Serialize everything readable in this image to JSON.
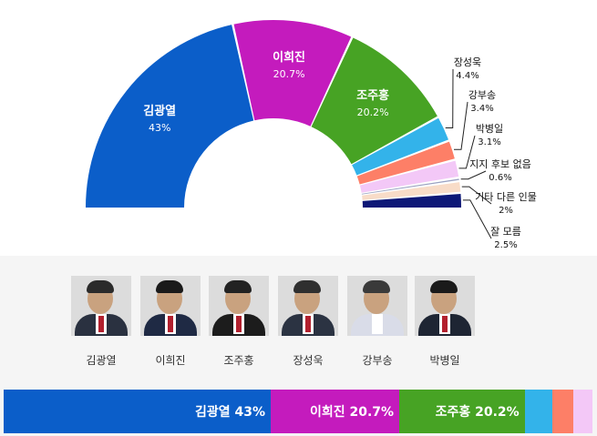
{
  "chart_data": {
    "type": "pie",
    "subtype": "half-donut",
    "slices": [
      {
        "label": "김광열",
        "value": 43,
        "display": "43%",
        "color": "#0b5ec9"
      },
      {
        "label": "이희진",
        "value": 20.7,
        "display": "20.7%",
        "color": "#c41bbd"
      },
      {
        "label": "조주홍",
        "value": 20.2,
        "display": "20.2%",
        "color": "#47a324"
      },
      {
        "label": "장성욱",
        "value": 4.4,
        "display": "4.4%",
        "color": "#33b3ea"
      },
      {
        "label": "강부송",
        "value": 3.4,
        "display": "3.4%",
        "color": "#fd7f67"
      },
      {
        "label": "박병일",
        "value": 3.1,
        "display": "3.1%",
        "color": "#f3c8f7"
      },
      {
        "label": "지지 후보 없음",
        "value": 0.6,
        "display": "0.6%",
        "color": "#9aa2c2"
      },
      {
        "label": "기타 다른 인물",
        "value": 2,
        "display": "2%",
        "color": "#f8dcc8"
      },
      {
        "label": "잘 모름",
        "value": 2.5,
        "display": "2.5%",
        "color": "#0d1877"
      }
    ]
  },
  "candidates": [
    {
      "name": "김광열"
    },
    {
      "name": "이희진"
    },
    {
      "name": "조주홍"
    },
    {
      "name": "장성욱"
    },
    {
      "name": "강부송"
    },
    {
      "name": "박병일"
    }
  ],
  "bar": [
    {
      "label": "김광열 43%",
      "value": 43,
      "color": "#0b5ec9"
    },
    {
      "label": "이희진 20.7%",
      "value": 20.7,
      "color": "#c41bbd"
    },
    {
      "label": "조주홍 20.2%",
      "value": 20.2,
      "color": "#47a324"
    },
    {
      "label": "",
      "value": 4.4,
      "color": "#33b3ea"
    },
    {
      "label": "",
      "value": 3.4,
      "color": "#fd7f67"
    },
    {
      "label": "",
      "value": 3.1,
      "color": "#f3c8f7"
    }
  ]
}
